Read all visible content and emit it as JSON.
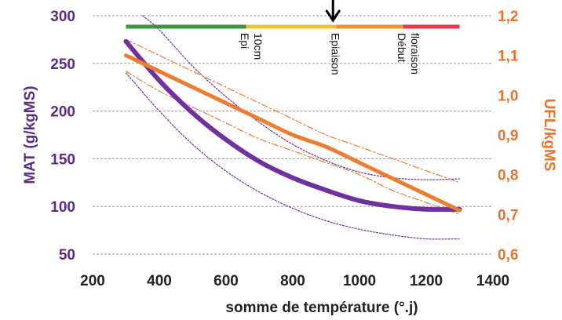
{
  "chart_data": {
    "type": "line",
    "xlabel": "somme de température (°.j)",
    "ylabel_left": "MAT (g/kgMS)",
    "ylabel_right": "UFL/kgMS",
    "x_ticks": [
      "200",
      "400",
      "600",
      "800",
      "1000",
      "1200",
      "1400"
    ],
    "y_left_ticks": [
      "50",
      "100",
      "150",
      "200",
      "250",
      "300"
    ],
    "y_right_ticks": [
      "0,6",
      "0,7",
      "0,8",
      "0,9",
      "1,0",
      "1,1",
      "1,2"
    ],
    "xlim": [
      200,
      1400
    ],
    "ylim_left": [
      50,
      300
    ],
    "ylim_right": [
      0.6,
      1.2
    ],
    "grid": "horizontal dashed",
    "colors": {
      "mat": "#7030a0",
      "ufl": "#ed7d31",
      "stage_green": "#3a9a3a",
      "stage_yellow": "#f2c12e",
      "stage_orange": "#f0932b",
      "stage_red": "#e8394a"
    },
    "stage_bar": [
      {
        "from": 300,
        "to": 660,
        "color": "#3a9a3a"
      },
      {
        "from": 660,
        "to": 930,
        "color": "#f2c12e"
      },
      {
        "from": 930,
        "to": 1130,
        "color": "#f0932b"
      },
      {
        "from": 1130,
        "to": 1300,
        "color": "#e8394a"
      }
    ],
    "stage_labels": [
      {
        "lines": [
          "Epi",
          "10cm"
        ],
        "x": 660
      },
      {
        "lines": [
          "Epiaison"
        ],
        "x": 930
      },
      {
        "lines": [
          "Début",
          "floraison"
        ],
        "x": 1130
      }
    ],
    "arrow_x": 930,
    "series": [
      {
        "axis": "left",
        "style": "solid",
        "x": [
          300,
          400,
          500,
          600,
          700,
          800,
          900,
          1000,
          1100,
          1200,
          1300
        ],
        "values": [
          273,
          232,
          198,
          170,
          147,
          130,
          117,
          106,
          100,
          97,
          97
        ]
      },
      {
        "axis": "left",
        "style": "dotted-upper",
        "x": [
          350,
          400,
          500,
          600,
          700,
          800,
          900,
          1000,
          1100,
          1200,
          1300
        ],
        "values": [
          300,
          285,
          247,
          215,
          188,
          165,
          148,
          136,
          130,
          128,
          129
        ]
      },
      {
        "axis": "left",
        "style": "dotted-lower",
        "x": [
          300,
          400,
          500,
          600,
          700,
          800,
          900,
          1000,
          1100,
          1200,
          1300
        ],
        "values": [
          240,
          200,
          165,
          137,
          115,
          98,
          85,
          76,
          70,
          66,
          66
        ]
      },
      {
        "axis": "right",
        "style": "solid",
        "x": [
          300,
          400,
          500,
          600,
          700,
          800,
          900,
          1000,
          1100,
          1200,
          1300
        ],
        "values": [
          1.1,
          1.06,
          1.02,
          0.98,
          0.94,
          0.9,
          0.87,
          0.83,
          0.79,
          0.75,
          0.71
        ]
      },
      {
        "axis": "right",
        "style": "dashdot-upper",
        "x": [
          300,
          400,
          500,
          600,
          700,
          800,
          900,
          1000,
          1100,
          1200,
          1300
        ],
        "values": [
          1.14,
          1.1,
          1.06,
          1.02,
          0.98,
          0.94,
          0.9,
          0.87,
          0.84,
          0.81,
          0.78
        ]
      },
      {
        "axis": "right",
        "style": "dashdot-lower",
        "x": [
          300,
          400,
          500,
          600,
          700,
          800,
          900,
          1000,
          1100,
          1200,
          1300
        ],
        "values": [
          1.06,
          1.01,
          0.97,
          0.93,
          0.89,
          0.86,
          0.83,
          0.8,
          0.76,
          0.73,
          0.7
        ]
      }
    ]
  }
}
